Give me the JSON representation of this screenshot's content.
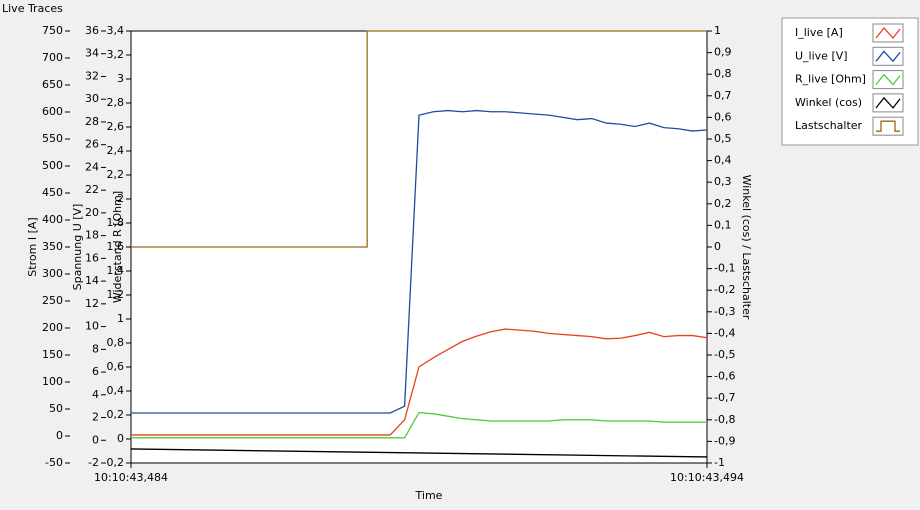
{
  "chart_data": {
    "type": "line",
    "title": "Live Traces",
    "xlabel": "Time",
    "xlim": [
      43.484,
      43.494
    ],
    "xticks": [
      {
        "value": 43.484,
        "label": "10:10:43,484"
      },
      {
        "value": 43.494,
        "label": "10:10:43,494"
      }
    ],
    "x": [
      43.484,
      43.48425,
      43.4845,
      43.48475,
      43.485,
      43.48525,
      43.4855,
      43.48575,
      43.486,
      43.48625,
      43.4865,
      43.48675,
      43.487,
      43.48725,
      43.4875,
      43.48775,
      43.488,
      43.48825,
      43.4885,
      43.48875,
      43.489,
      43.48925,
      43.4895,
      43.48975,
      43.49,
      43.49025,
      43.4905,
      43.49075,
      43.491,
      43.49125,
      43.4915,
      43.49175,
      43.492,
      43.49225,
      43.4925,
      43.49275,
      43.493,
      43.49325,
      43.4935,
      43.49375,
      43.494
    ],
    "axes": [
      {
        "label": "Strom I [A]",
        "side": "left",
        "lim": [
          -50,
          750
        ],
        "ticks": [
          -50,
          0,
          50,
          100,
          150,
          200,
          250,
          300,
          350,
          400,
          450,
          500,
          550,
          600,
          650,
          700,
          750
        ]
      },
      {
        "label": "Spannung U [V]",
        "side": "left",
        "lim": [
          -2,
          36
        ],
        "ticks": [
          -2,
          0,
          2,
          4,
          6,
          8,
          10,
          12,
          14,
          16,
          18,
          20,
          22,
          24,
          26,
          28,
          30,
          32,
          34,
          36
        ]
      },
      {
        "label": "Widerstand R [Ohm]",
        "side": "left",
        "lim": [
          -0.2,
          3.4
        ],
        "ticks": [
          {
            "value": -0.2,
            "label": "-0,2"
          },
          0,
          {
            "value": 0.2,
            "label": "0,2"
          },
          {
            "value": 0.4,
            "label": "0,4"
          },
          {
            "value": 0.6,
            "label": "0,6"
          },
          {
            "value": 0.8,
            "label": "0,8"
          },
          1,
          {
            "value": 1.2,
            "label": "1,2"
          },
          {
            "value": 1.4,
            "label": "1,4"
          },
          {
            "value": 1.6,
            "label": "1,6"
          },
          {
            "value": 1.8,
            "label": "1,8"
          },
          2,
          {
            "value": 2.2,
            "label": "2,2"
          },
          {
            "value": 2.4,
            "label": "2,4"
          },
          {
            "value": 2.6,
            "label": "2,6"
          },
          {
            "value": 2.8,
            "label": "2,8"
          },
          3,
          {
            "value": 3.2,
            "label": "3,2"
          },
          {
            "value": 3.4,
            "label": "3,4"
          }
        ]
      },
      {
        "label": "Winkel (cos) / Lastschalter",
        "side": "right",
        "lim": [
          -1,
          1
        ],
        "ticks": [
          -1,
          {
            "value": -0.9,
            "label": "-0,9"
          },
          {
            "value": -0.8,
            "label": "-0,8"
          },
          {
            "value": -0.7,
            "label": "-0,7"
          },
          {
            "value": -0.6,
            "label": "-0,6"
          },
          {
            "value": -0.5,
            "label": "-0,5"
          },
          {
            "value": -0.4,
            "label": "-0,4"
          },
          {
            "value": -0.3,
            "label": "-0,3"
          },
          {
            "value": -0.2,
            "label": "-0,2"
          },
          {
            "value": -0.1,
            "label": "-0,1"
          },
          0,
          {
            "value": 0.1,
            "label": "0,1"
          },
          {
            "value": 0.2,
            "label": "0,2"
          },
          {
            "value": 0.3,
            "label": "0,3"
          },
          {
            "value": 0.4,
            "label": "0,4"
          },
          {
            "value": 0.5,
            "label": "0,5"
          },
          {
            "value": 0.6,
            "label": "0,6"
          },
          {
            "value": 0.7,
            "label": "0,7"
          },
          {
            "value": 0.8,
            "label": "0,8"
          },
          {
            "value": 0.9,
            "label": "0,9"
          },
          1
        ]
      }
    ],
    "series": [
      {
        "name": "I_live [A]",
        "color": "#e8401c",
        "axis": 0,
        "values": [
          2,
          2,
          2,
          2,
          2,
          2,
          2,
          2,
          2,
          2,
          2,
          2,
          2,
          2,
          2,
          2,
          2,
          2,
          2,
          30,
          128,
          145,
          160,
          175,
          185,
          193,
          198,
          196,
          194,
          190,
          188,
          186,
          184,
          180,
          181,
          186,
          192,
          184,
          186,
          186,
          182
        ]
      },
      {
        "name": "U_live [V]",
        "color": "#1f4e9e",
        "axis": 1,
        "values": [
          2.4,
          2.4,
          2.4,
          2.4,
          2.4,
          2.4,
          2.4,
          2.4,
          2.4,
          2.4,
          2.4,
          2.4,
          2.4,
          2.4,
          2.4,
          2.4,
          2.4,
          2.4,
          2.4,
          3.0,
          28.6,
          28.9,
          29.0,
          28.9,
          29.0,
          28.9,
          28.9,
          28.8,
          28.7,
          28.6,
          28.4,
          28.2,
          28.3,
          27.9,
          27.8,
          27.6,
          27.9,
          27.5,
          27.4,
          27.2,
          27.3
        ]
      },
      {
        "name": "R_live [Ohm]",
        "color": "#4ccd3c",
        "axis": 2,
        "values": [
          0.01,
          0.01,
          0.01,
          0.01,
          0.01,
          0.01,
          0.01,
          0.01,
          0.01,
          0.01,
          0.01,
          0.01,
          0.01,
          0.01,
          0.01,
          0.01,
          0.01,
          0.01,
          0.01,
          0.01,
          0.22,
          0.21,
          0.19,
          0.17,
          0.16,
          0.15,
          0.15,
          0.15,
          0.15,
          0.15,
          0.16,
          0.16,
          0.16,
          0.15,
          0.15,
          0.15,
          0.15,
          0.14,
          0.14,
          0.14,
          0.14
        ]
      },
      {
        "name": "Winkel (cos)",
        "color": "#000000",
        "axis": 3,
        "x": [
          43.484,
          43.494
        ],
        "values": [
          -0.935,
          -0.972
        ]
      },
      {
        "name": "Lastschalter",
        "color": "#9b6b14",
        "axis": 3,
        "x": [
          43.484,
          43.4881,
          43.4881,
          43.494
        ],
        "values": [
          0,
          0,
          1,
          1
        ]
      }
    ]
  }
}
